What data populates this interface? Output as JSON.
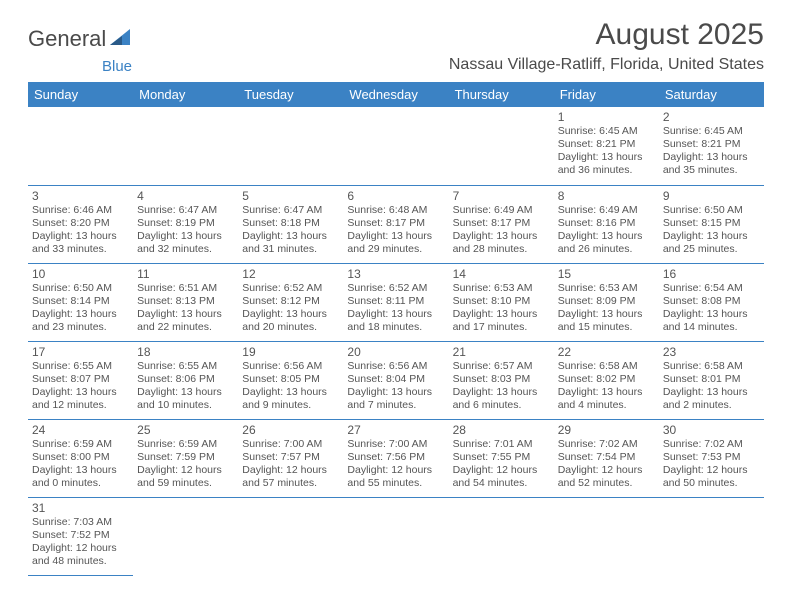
{
  "logo": {
    "name_a": "General",
    "name_b": "Blue"
  },
  "title": "August 2025",
  "location": "Nassau Village-Ratliff, Florida, United States",
  "colors": {
    "brand": "#3b82c4",
    "text": "#4a4a4a",
    "celltext": "#555555",
    "bg": "#ffffff"
  },
  "typography": {
    "title_fontsize": 30,
    "location_fontsize": 16,
    "header_fontsize": 13,
    "daynum_fontsize": 12,
    "info_fontsize": 10.5
  },
  "layout": {
    "columns": 7,
    "rows": 6,
    "cell_border_color": "#3b82c4"
  },
  "dow": [
    "Sunday",
    "Monday",
    "Tuesday",
    "Wednesday",
    "Thursday",
    "Friday",
    "Saturday"
  ],
  "weeks": [
    [
      null,
      null,
      null,
      null,
      null,
      {
        "d": "1",
        "sr": "Sunrise: 6:45 AM",
        "ss": "Sunset: 8:21 PM",
        "dl1": "Daylight: 13 hours",
        "dl2": "and 36 minutes."
      },
      {
        "d": "2",
        "sr": "Sunrise: 6:45 AM",
        "ss": "Sunset: 8:21 PM",
        "dl1": "Daylight: 13 hours",
        "dl2": "and 35 minutes."
      }
    ],
    [
      {
        "d": "3",
        "sr": "Sunrise: 6:46 AM",
        "ss": "Sunset: 8:20 PM",
        "dl1": "Daylight: 13 hours",
        "dl2": "and 33 minutes."
      },
      {
        "d": "4",
        "sr": "Sunrise: 6:47 AM",
        "ss": "Sunset: 8:19 PM",
        "dl1": "Daylight: 13 hours",
        "dl2": "and 32 minutes."
      },
      {
        "d": "5",
        "sr": "Sunrise: 6:47 AM",
        "ss": "Sunset: 8:18 PM",
        "dl1": "Daylight: 13 hours",
        "dl2": "and 31 minutes."
      },
      {
        "d": "6",
        "sr": "Sunrise: 6:48 AM",
        "ss": "Sunset: 8:17 PM",
        "dl1": "Daylight: 13 hours",
        "dl2": "and 29 minutes."
      },
      {
        "d": "7",
        "sr": "Sunrise: 6:49 AM",
        "ss": "Sunset: 8:17 PM",
        "dl1": "Daylight: 13 hours",
        "dl2": "and 28 minutes."
      },
      {
        "d": "8",
        "sr": "Sunrise: 6:49 AM",
        "ss": "Sunset: 8:16 PM",
        "dl1": "Daylight: 13 hours",
        "dl2": "and 26 minutes."
      },
      {
        "d": "9",
        "sr": "Sunrise: 6:50 AM",
        "ss": "Sunset: 8:15 PM",
        "dl1": "Daylight: 13 hours",
        "dl2": "and 25 minutes."
      }
    ],
    [
      {
        "d": "10",
        "sr": "Sunrise: 6:50 AM",
        "ss": "Sunset: 8:14 PM",
        "dl1": "Daylight: 13 hours",
        "dl2": "and 23 minutes."
      },
      {
        "d": "11",
        "sr": "Sunrise: 6:51 AM",
        "ss": "Sunset: 8:13 PM",
        "dl1": "Daylight: 13 hours",
        "dl2": "and 22 minutes."
      },
      {
        "d": "12",
        "sr": "Sunrise: 6:52 AM",
        "ss": "Sunset: 8:12 PM",
        "dl1": "Daylight: 13 hours",
        "dl2": "and 20 minutes."
      },
      {
        "d": "13",
        "sr": "Sunrise: 6:52 AM",
        "ss": "Sunset: 8:11 PM",
        "dl1": "Daylight: 13 hours",
        "dl2": "and 18 minutes."
      },
      {
        "d": "14",
        "sr": "Sunrise: 6:53 AM",
        "ss": "Sunset: 8:10 PM",
        "dl1": "Daylight: 13 hours",
        "dl2": "and 17 minutes."
      },
      {
        "d": "15",
        "sr": "Sunrise: 6:53 AM",
        "ss": "Sunset: 8:09 PM",
        "dl1": "Daylight: 13 hours",
        "dl2": "and 15 minutes."
      },
      {
        "d": "16",
        "sr": "Sunrise: 6:54 AM",
        "ss": "Sunset: 8:08 PM",
        "dl1": "Daylight: 13 hours",
        "dl2": "and 14 minutes."
      }
    ],
    [
      {
        "d": "17",
        "sr": "Sunrise: 6:55 AM",
        "ss": "Sunset: 8:07 PM",
        "dl1": "Daylight: 13 hours",
        "dl2": "and 12 minutes."
      },
      {
        "d": "18",
        "sr": "Sunrise: 6:55 AM",
        "ss": "Sunset: 8:06 PM",
        "dl1": "Daylight: 13 hours",
        "dl2": "and 10 minutes."
      },
      {
        "d": "19",
        "sr": "Sunrise: 6:56 AM",
        "ss": "Sunset: 8:05 PM",
        "dl1": "Daylight: 13 hours",
        "dl2": "and 9 minutes."
      },
      {
        "d": "20",
        "sr": "Sunrise: 6:56 AM",
        "ss": "Sunset: 8:04 PM",
        "dl1": "Daylight: 13 hours",
        "dl2": "and 7 minutes."
      },
      {
        "d": "21",
        "sr": "Sunrise: 6:57 AM",
        "ss": "Sunset: 8:03 PM",
        "dl1": "Daylight: 13 hours",
        "dl2": "and 6 minutes."
      },
      {
        "d": "22",
        "sr": "Sunrise: 6:58 AM",
        "ss": "Sunset: 8:02 PM",
        "dl1": "Daylight: 13 hours",
        "dl2": "and 4 minutes."
      },
      {
        "d": "23",
        "sr": "Sunrise: 6:58 AM",
        "ss": "Sunset: 8:01 PM",
        "dl1": "Daylight: 13 hours",
        "dl2": "and 2 minutes."
      }
    ],
    [
      {
        "d": "24",
        "sr": "Sunrise: 6:59 AM",
        "ss": "Sunset: 8:00 PM",
        "dl1": "Daylight: 13 hours",
        "dl2": "and 0 minutes."
      },
      {
        "d": "25",
        "sr": "Sunrise: 6:59 AM",
        "ss": "Sunset: 7:59 PM",
        "dl1": "Daylight: 12 hours",
        "dl2": "and 59 minutes."
      },
      {
        "d": "26",
        "sr": "Sunrise: 7:00 AM",
        "ss": "Sunset: 7:57 PM",
        "dl1": "Daylight: 12 hours",
        "dl2": "and 57 minutes."
      },
      {
        "d": "27",
        "sr": "Sunrise: 7:00 AM",
        "ss": "Sunset: 7:56 PM",
        "dl1": "Daylight: 12 hours",
        "dl2": "and 55 minutes."
      },
      {
        "d": "28",
        "sr": "Sunrise: 7:01 AM",
        "ss": "Sunset: 7:55 PM",
        "dl1": "Daylight: 12 hours",
        "dl2": "and 54 minutes."
      },
      {
        "d": "29",
        "sr": "Sunrise: 7:02 AM",
        "ss": "Sunset: 7:54 PM",
        "dl1": "Daylight: 12 hours",
        "dl2": "and 52 minutes."
      },
      {
        "d": "30",
        "sr": "Sunrise: 7:02 AM",
        "ss": "Sunset: 7:53 PM",
        "dl1": "Daylight: 12 hours",
        "dl2": "and 50 minutes."
      }
    ],
    [
      {
        "d": "31",
        "sr": "Sunrise: 7:03 AM",
        "ss": "Sunset: 7:52 PM",
        "dl1": "Daylight: 12 hours",
        "dl2": "and 48 minutes."
      },
      null,
      null,
      null,
      null,
      null,
      null
    ]
  ]
}
